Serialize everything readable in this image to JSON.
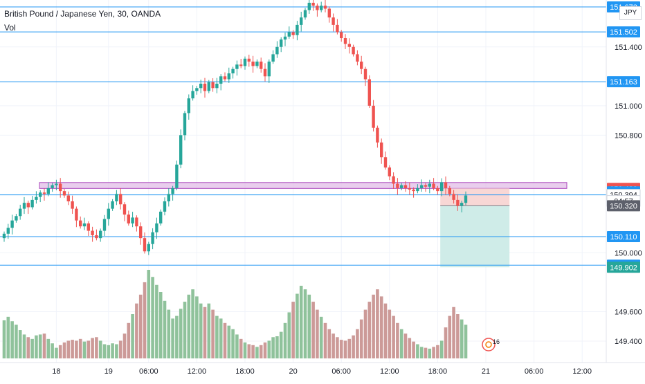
{
  "header": {
    "symbol_line": "British Pound / Japanese Yen, 30, OANDA",
    "indicator": "Vol",
    "currency_button": "JPY"
  },
  "colors": {
    "up": "#26a69a",
    "down": "#ef5350",
    "vol_up": "#8fc29b",
    "vol_down": "#cc9a98",
    "hline": "#2196f3",
    "zone_fill": "#e1bee7",
    "zone_stroke": "#ab47bc",
    "stop_fill": "#f8d7d5",
    "target_fill": "#cfece8",
    "badge_blue": "#2196f3",
    "badge_red": "#ef5350",
    "badge_green": "#26a69a",
    "badge_gray": "#5d606b"
  },
  "chart_data": {
    "type": "candlestick",
    "title": "British Pound / Japanese Yen, 30, OANDA",
    "ylim": [
      149.32,
      151.7
    ],
    "y_ticks": [
      "151.400",
      "151.000",
      "150.800",
      "150.000",
      "149.600",
      "149.400"
    ],
    "x_ticks": [
      "18",
      "19",
      "06:00",
      "12:00",
      "18:00",
      "20",
      "06:00",
      "12:00",
      "18:00",
      "21",
      "06:00",
      "12:00"
    ],
    "x_tick_candle_index": [
      13,
      26,
      36,
      48,
      60,
      72,
      84,
      96,
      108,
      120,
      132,
      144
    ],
    "horizontal_lines": [
      151.672,
      151.502,
      151.163,
      150.394,
      150.11,
      149.916
    ],
    "zone": [
      150.438,
      150.478
    ],
    "position": {
      "entry": 150.32,
      "stop": 150.438,
      "target": 149.902,
      "start_index": 109
    },
    "price_badges": [
      {
        "label": "151.672",
        "value": 151.672,
        "kind": "blue"
      },
      {
        "label": "151.502",
        "value": 151.502,
        "kind": "blue"
      },
      {
        "label": "151.163",
        "value": 151.163,
        "kind": "blue"
      },
      {
        "label": "150.438",
        "value": 150.438,
        "kind": "red"
      },
      {
        "label": "150.415",
        "value": 150.415,
        "kind": "blue"
      },
      {
        "label": "150.394",
        "value": 150.394,
        "kind": "outline"
      },
      {
        "label": "04:57",
        "value": 150.352,
        "kind": "outline"
      },
      {
        "label": "150.320",
        "value": 150.32,
        "kind": "gray"
      },
      {
        "label": "150.110",
        "value": 150.11,
        "kind": "blue"
      },
      {
        "label": "149.916",
        "value": 149.916,
        "kind": "blue"
      },
      {
        "label": "149.902",
        "value": 149.902,
        "kind": "green"
      }
    ],
    "event_badge": "16",
    "closes": [
      150.13,
      150.17,
      150.22,
      150.25,
      150.3,
      150.34,
      150.31,
      150.36,
      150.38,
      150.41,
      150.4,
      150.44,
      150.46,
      150.47,
      150.42,
      150.39,
      150.35,
      150.3,
      150.22,
      150.18,
      150.2,
      150.15,
      150.12,
      150.1,
      150.15,
      150.23,
      150.3,
      150.35,
      150.4,
      150.33,
      150.26,
      150.2,
      150.24,
      150.18,
      150.1,
      150.01,
      150.06,
      150.14,
      150.2,
      150.28,
      150.35,
      150.4,
      150.44,
      150.6,
      150.8,
      150.95,
      151.05,
      151.1,
      151.12,
      151.15,
      151.1,
      151.16,
      151.12,
      151.15,
      151.2,
      151.18,
      151.22,
      151.25,
      151.28,
      151.27,
      151.32,
      151.3,
      151.27,
      151.3,
      151.25,
      151.2,
      151.3,
      151.35,
      151.4,
      151.45,
      151.47,
      151.5,
      151.48,
      151.55,
      151.6,
      151.65,
      151.7,
      151.68,
      151.65,
      151.68,
      151.66,
      151.6,
      151.55,
      151.5,
      151.46,
      151.42,
      151.4,
      151.35,
      151.3,
      151.25,
      151.18,
      151.0,
      150.85,
      150.75,
      150.65,
      150.58,
      150.52,
      150.47,
      150.44,
      150.46,
      150.44,
      150.43,
      150.42,
      150.44,
      150.46,
      150.45,
      150.47,
      150.44,
      150.42,
      150.48,
      150.44,
      150.4,
      150.36,
      150.32,
      150.34,
      150.39
    ],
    "volumes": [
      0.43,
      0.47,
      0.42,
      0.38,
      0.32,
      0.27,
      0.24,
      0.22,
      0.26,
      0.27,
      0.28,
      0.22,
      0.17,
      0.12,
      0.15,
      0.18,
      0.2,
      0.21,
      0.2,
      0.22,
      0.19,
      0.2,
      0.23,
      0.24,
      0.2,
      0.16,
      0.15,
      0.17,
      0.16,
      0.2,
      0.28,
      0.4,
      0.5,
      0.62,
      0.72,
      0.86,
      1.0,
      0.92,
      0.83,
      0.75,
      0.65,
      0.55,
      0.45,
      0.48,
      0.56,
      0.64,
      0.72,
      0.78,
      0.7,
      0.62,
      0.58,
      0.62,
      0.55,
      0.48,
      0.45,
      0.4,
      0.37,
      0.33,
      0.27,
      0.22,
      0.18,
      0.16,
      0.15,
      0.13,
      0.15,
      0.18,
      0.2,
      0.24,
      0.25,
      0.3,
      0.4,
      0.52,
      0.64,
      0.73,
      0.82,
      0.78,
      0.72,
      0.64,
      0.55,
      0.47,
      0.4,
      0.33,
      0.28,
      0.24,
      0.21,
      0.2,
      0.22,
      0.26,
      0.33,
      0.44,
      0.55,
      0.64,
      0.72,
      0.78,
      0.7,
      0.62,
      0.55,
      0.48,
      0.4,
      0.33,
      0.28,
      0.23,
      0.19,
      0.16,
      0.13,
      0.12,
      0.11,
      0.13,
      0.15,
      0.2,
      0.35,
      0.48,
      0.58,
      0.5,
      0.44,
      0.38
    ]
  }
}
